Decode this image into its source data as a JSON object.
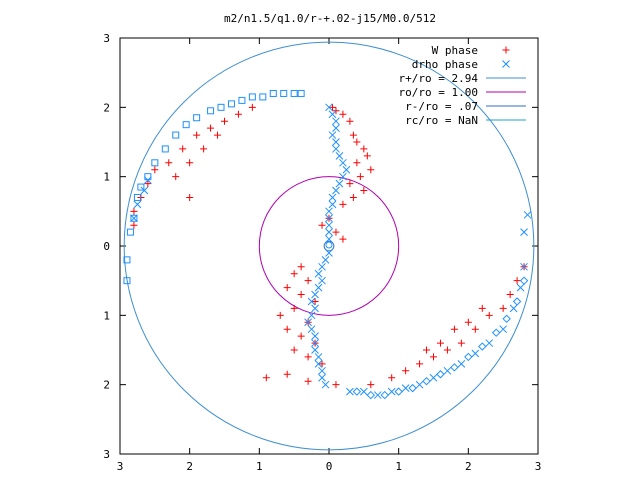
{
  "chart_data": {
    "type": "scatter",
    "title": "m2/n1.5/q1.0/r-+.02-j15/M0.0/512",
    "xlabel": "",
    "ylabel": "",
    "xlim": [
      -3,
      3
    ],
    "ylim": [
      -3,
      3
    ],
    "grid": false,
    "legend_position": "top-right",
    "x_ticks": [
      -3,
      -2,
      -1,
      0,
      1,
      2,
      3
    ],
    "x_tick_labels": [
      "3",
      "2",
      "1",
      "0",
      "1",
      "2",
      "3"
    ],
    "y_ticks": [
      3,
      2,
      1,
      0,
      -1,
      -2,
      -3
    ],
    "y_tick_labels": [
      "3",
      "2",
      "1",
      "0",
      "1",
      "2",
      "3"
    ],
    "legend": [
      {
        "label": "W phase",
        "kind": "marker-plus",
        "color": "#ff0000"
      },
      {
        "label": "drho phase",
        "kind": "marker-x",
        "color": "#1e90ff"
      },
      {
        "label": "r+/ro = 2.94",
        "kind": "line",
        "color": "#3f8fd0"
      },
      {
        "label": "ro/ro = 1.00",
        "kind": "line",
        "color": "#b000b0"
      },
      {
        "label": "r-/ro = .07",
        "kind": "line",
        "color": "#2f6fc0"
      },
      {
        "label": "rc/ro = NaN",
        "kind": "line",
        "color": "#20a0c0"
      }
    ],
    "circles": [
      {
        "name": "r+/ro",
        "radius": 2.94,
        "color": "#3f8fd0"
      },
      {
        "name": "ro/ro",
        "radius": 1.0,
        "color": "#b000b0"
      },
      {
        "name": "r-/ro",
        "radius": 0.07,
        "color": "#2f6fc0"
      }
    ],
    "series": [
      {
        "name": "W phase",
        "marker": "plus",
        "color": "#ff0000",
        "points": [
          [
            0.05,
            2.0
          ],
          [
            0.1,
            1.95
          ],
          [
            0.2,
            1.9
          ],
          [
            0.3,
            1.8
          ],
          [
            0.35,
            1.6
          ],
          [
            0.4,
            1.5
          ],
          [
            0.5,
            1.4
          ],
          [
            0.55,
            1.3
          ],
          [
            0.4,
            1.2
          ],
          [
            0.6,
            1.1
          ],
          [
            0.45,
            1.0
          ],
          [
            0.3,
            0.9
          ],
          [
            0.5,
            0.8
          ],
          [
            0.35,
            0.7
          ],
          [
            0.2,
            0.6
          ],
          [
            0.0,
            0.4
          ],
          [
            -0.1,
            0.3
          ],
          [
            0.1,
            0.2
          ],
          [
            0.2,
            0.1
          ],
          [
            -0.4,
            -0.3
          ],
          [
            -0.5,
            -0.4
          ],
          [
            -0.3,
            -0.5
          ],
          [
            -0.6,
            -0.6
          ],
          [
            -0.4,
            -0.7
          ],
          [
            -0.2,
            -0.8
          ],
          [
            -0.5,
            -0.9
          ],
          [
            -0.7,
            -1.0
          ],
          [
            -0.3,
            -1.1
          ],
          [
            -0.6,
            -1.2
          ],
          [
            -0.4,
            -1.3
          ],
          [
            -0.2,
            -1.4
          ],
          [
            -0.5,
            -1.5
          ],
          [
            -0.3,
            -1.6
          ],
          [
            -0.1,
            -1.7
          ],
          [
            -0.6,
            -1.85
          ],
          [
            -0.9,
            -1.9
          ],
          [
            -0.3,
            -1.95
          ],
          [
            0.1,
            -2.0
          ],
          [
            -2.8,
            0.3
          ],
          [
            -2.8,
            0.5
          ],
          [
            -2.7,
            0.7
          ],
          [
            -2.6,
            0.9
          ],
          [
            -2.5,
            1.1
          ],
          [
            -2.3,
            1.2
          ],
          [
            -2.1,
            1.4
          ],
          [
            -1.9,
            1.6
          ],
          [
            -1.7,
            1.7
          ],
          [
            -1.5,
            1.8
          ],
          [
            -1.3,
            1.9
          ],
          [
            -1.1,
            2.0
          ],
          [
            -2.2,
            1.0
          ],
          [
            -2.0,
            1.2
          ],
          [
            -1.8,
            1.4
          ],
          [
            -1.6,
            1.6
          ],
          [
            -2.0,
            0.7
          ],
          [
            2.8,
            -0.3
          ],
          [
            2.7,
            -0.5
          ],
          [
            2.6,
            -0.7
          ],
          [
            2.5,
            -0.9
          ],
          [
            2.3,
            -1.0
          ],
          [
            2.1,
            -1.2
          ],
          [
            1.9,
            -1.4
          ],
          [
            1.7,
            -1.5
          ],
          [
            1.5,
            -1.6
          ],
          [
            1.3,
            -1.7
          ],
          [
            1.1,
            -1.8
          ],
          [
            0.9,
            -1.9
          ],
          [
            0.6,
            -2.0
          ],
          [
            2.2,
            -0.9
          ],
          [
            2.0,
            -1.1
          ],
          [
            1.8,
            -1.2
          ],
          [
            1.6,
            -1.4
          ],
          [
            1.4,
            -1.5
          ]
        ]
      },
      {
        "name": "drho phase",
        "marker": "x",
        "color": "#1e90ff",
        "points": [
          [
            0.0,
            2.0
          ],
          [
            0.05,
            1.9
          ],
          [
            0.1,
            1.8
          ],
          [
            0.1,
            1.7
          ],
          [
            0.05,
            1.6
          ],
          [
            0.1,
            1.5
          ],
          [
            0.1,
            1.4
          ],
          [
            0.15,
            1.3
          ],
          [
            0.2,
            1.2
          ],
          [
            0.25,
            1.1
          ],
          [
            0.2,
            1.0
          ],
          [
            0.15,
            0.9
          ],
          [
            0.1,
            0.8
          ],
          [
            0.05,
            0.7
          ],
          [
            0.05,
            0.6
          ],
          [
            0.0,
            0.5
          ],
          [
            0.0,
            0.4
          ],
          [
            0.0,
            0.3
          ],
          [
            0.0,
            0.2
          ],
          [
            0.0,
            0.1
          ],
          [
            0.0,
            -0.1
          ],
          [
            -0.05,
            -0.2
          ],
          [
            -0.1,
            -0.3
          ],
          [
            -0.15,
            -0.4
          ],
          [
            -0.1,
            -0.5
          ],
          [
            -0.15,
            -0.6
          ],
          [
            -0.2,
            -0.7
          ],
          [
            -0.25,
            -0.8
          ],
          [
            -0.2,
            -0.9
          ],
          [
            -0.25,
            -1.0
          ],
          [
            -0.3,
            -1.1
          ],
          [
            -0.25,
            -1.2
          ],
          [
            -0.2,
            -1.3
          ],
          [
            -0.2,
            -1.4
          ],
          [
            -0.2,
            -1.5
          ],
          [
            -0.15,
            -1.6
          ],
          [
            -0.15,
            -1.7
          ],
          [
            -0.1,
            -1.8
          ],
          [
            -0.1,
            -1.9
          ],
          [
            -0.05,
            -2.0
          ],
          [
            0.3,
            -2.1
          ],
          [
            0.5,
            -2.1
          ],
          [
            0.7,
            -2.15
          ],
          [
            0.9,
            -2.1
          ],
          [
            1.1,
            -2.05
          ],
          [
            1.3,
            -2.0
          ],
          [
            1.5,
            -1.9
          ],
          [
            1.7,
            -1.8
          ],
          [
            1.9,
            -1.7
          ],
          [
            2.1,
            -1.55
          ],
          [
            2.3,
            -1.4
          ],
          [
            2.5,
            -1.2
          ],
          [
            2.65,
            -0.9
          ],
          [
            2.75,
            -0.6
          ],
          [
            2.8,
            -0.3
          ],
          [
            2.8,
            0.2
          ],
          [
            2.85,
            0.45
          ],
          [
            -2.8,
            0.4
          ],
          [
            -2.75,
            0.6
          ],
          [
            -2.65,
            0.8
          ],
          [
            -2.6,
            0.95
          ]
        ]
      },
      {
        "name": "",
        "marker": "square",
        "color": "#1e90ff",
        "points": [
          [
            -2.9,
            -0.2
          ],
          [
            -2.9,
            -0.5
          ],
          [
            -2.85,
            0.2
          ],
          [
            -2.8,
            0.4
          ],
          [
            -2.75,
            0.7
          ],
          [
            -2.7,
            0.85
          ],
          [
            -2.6,
            1.0
          ],
          [
            -2.5,
            1.2
          ],
          [
            -2.35,
            1.4
          ],
          [
            -2.2,
            1.6
          ],
          [
            -2.05,
            1.75
          ],
          [
            -1.9,
            1.85
          ],
          [
            -1.7,
            1.95
          ],
          [
            -1.55,
            2.0
          ],
          [
            -1.4,
            2.05
          ],
          [
            -1.25,
            2.1
          ],
          [
            -1.1,
            2.15
          ],
          [
            -0.95,
            2.15
          ],
          [
            -0.8,
            2.2
          ],
          [
            -0.65,
            2.2
          ],
          [
            -0.5,
            2.2
          ],
          [
            -0.4,
            2.2
          ]
        ]
      },
      {
        "name": "",
        "marker": "diamond",
        "color": "#1e90ff",
        "points": [
          [
            0.4,
            -2.1
          ],
          [
            0.6,
            -2.15
          ],
          [
            0.8,
            -2.15
          ],
          [
            1.0,
            -2.1
          ],
          [
            1.2,
            -2.05
          ],
          [
            1.4,
            -1.95
          ],
          [
            1.6,
            -1.85
          ],
          [
            1.8,
            -1.75
          ],
          [
            2.0,
            -1.6
          ],
          [
            2.2,
            -1.45
          ],
          [
            2.4,
            -1.25
          ],
          [
            2.55,
            -1.05
          ],
          [
            2.7,
            -0.8
          ],
          [
            2.8,
            -0.5
          ]
        ]
      }
    ]
  }
}
